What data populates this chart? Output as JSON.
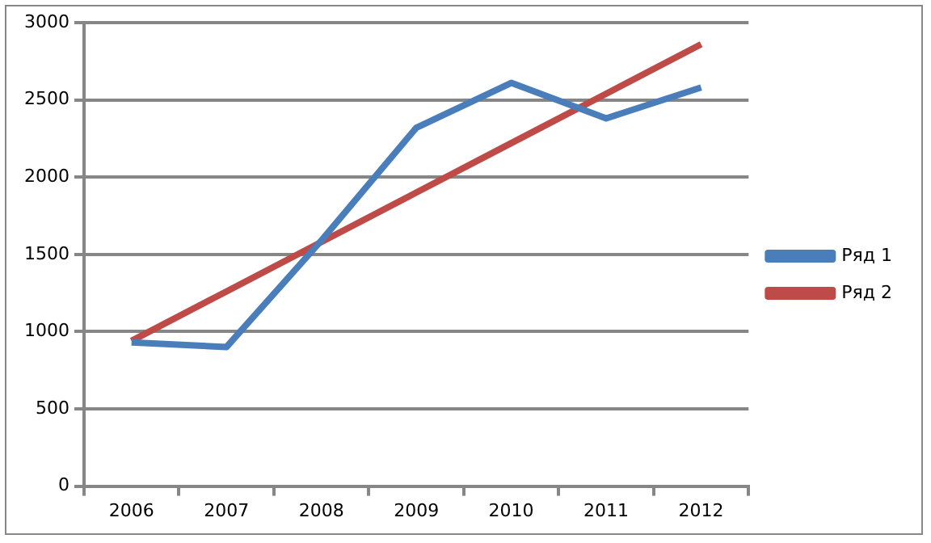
{
  "chart_data": {
    "type": "line",
    "categories": [
      "2006",
      "2007",
      "2008",
      "2009",
      "2010",
      "2011",
      "2012"
    ],
    "series": [
      {
        "name": "Ряд 1",
        "color": "#4a7ebb",
        "values": [
          930,
          900,
          1590,
          2320,
          2610,
          2380,
          2580
        ]
      },
      {
        "name": "Ряд 2",
        "color": "#be4b48",
        "values": [
          940,
          1260,
          1580,
          1900,
          2220,
          2540,
          2860
        ]
      }
    ],
    "ylim": [
      0,
      3000
    ],
    "yticks": [
      0,
      500,
      1000,
      1500,
      2000,
      2500,
      3000
    ],
    "grid": "y",
    "legend": "right",
    "marker": "none",
    "line_style": "solid"
  }
}
